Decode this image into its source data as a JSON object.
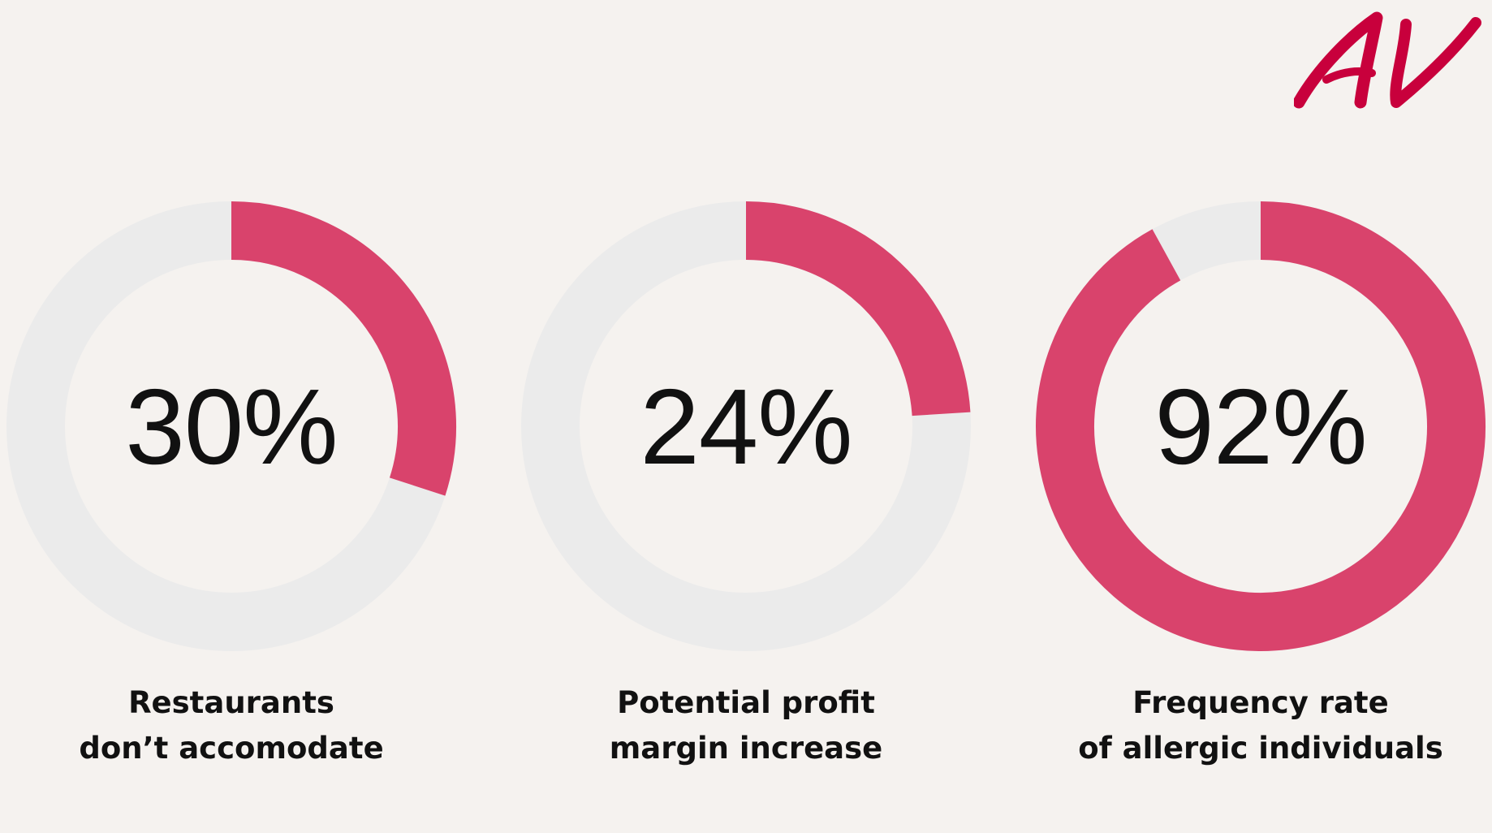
{
  "logo": {
    "text": "AV",
    "color": "#c8003c"
  },
  "colors": {
    "background": "#f5f2ef",
    "filled": "#d9436c",
    "remaining": "#ebebeb"
  },
  "chart_data": [
    {
      "type": "donut",
      "value": 30,
      "value_label": "30%",
      "caption": [
        "Restaurants",
        "don’t accomodate"
      ]
    },
    {
      "type": "donut",
      "value": 24,
      "value_label": "24%",
      "caption": [
        "Potential profit",
        "margin increase"
      ]
    },
    {
      "type": "donut",
      "value": 92,
      "value_label": "92%",
      "caption": [
        "Frequency rate",
        "of allergic individuals"
      ]
    }
  ]
}
